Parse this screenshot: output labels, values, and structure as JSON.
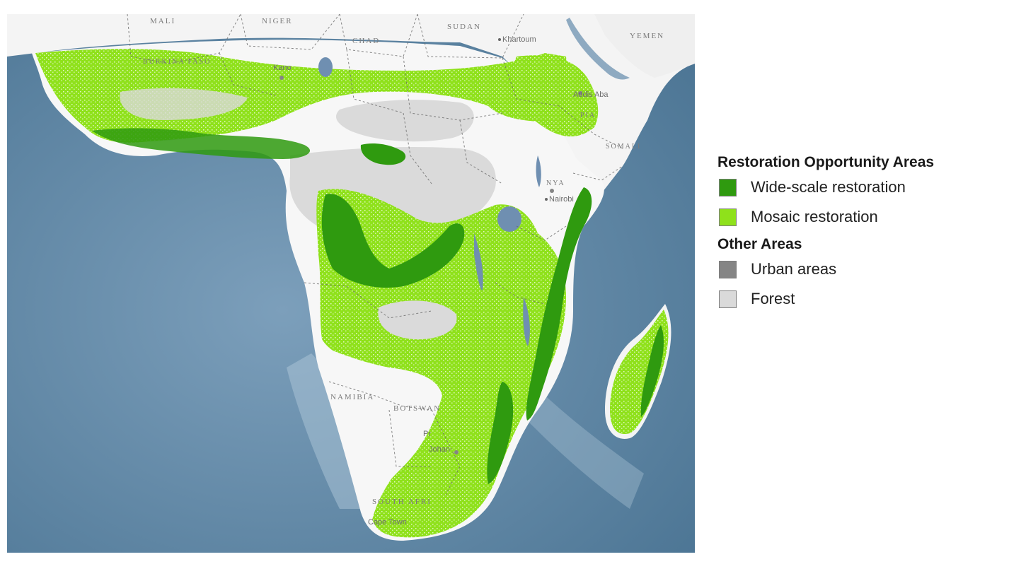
{
  "map": {
    "country_labels": {
      "mali": "MALI",
      "niger": "NIGER",
      "chad": "CHAD",
      "sudan": "SUDAN",
      "yemen": "YEMEN",
      "burkina_faso": "BURKINA FASO",
      "somali": "SOMALI",
      "ethiopia": "PIA",
      "kenya": "NYA",
      "namibia": "NAMIBIA",
      "botswana": "BOTSWAN",
      "south_africa": "SOUTH AFRI"
    },
    "city_labels": {
      "khartoum": "Khartoum",
      "kano": "Kano",
      "addis_ababa": "Addis Aba",
      "nairobi": "Nairobi",
      "johannesburg": "Johan",
      "pretoria": "Pr",
      "cape_town": "Cape Town"
    },
    "colors": {
      "ocean": "#5f86a4",
      "land": "#f6f6f6",
      "forest": "#dadada",
      "mosaic": "#8fe11b",
      "wide_scale": "#2f9a0f",
      "urban": "#858585",
      "lakes": "#6f8fb1"
    }
  },
  "legend": {
    "heading_restoration": "Restoration Opportunity Areas",
    "heading_other": "Other Areas",
    "items": [
      {
        "label": "Wide-scale restoration",
        "color": "#2f9a0f"
      },
      {
        "label": "Mosaic restoration",
        "color": "#8fe11b"
      },
      {
        "label": "Urban areas",
        "color": "#858585"
      },
      {
        "label": "Forest",
        "color": "#dadada"
      }
    ]
  }
}
